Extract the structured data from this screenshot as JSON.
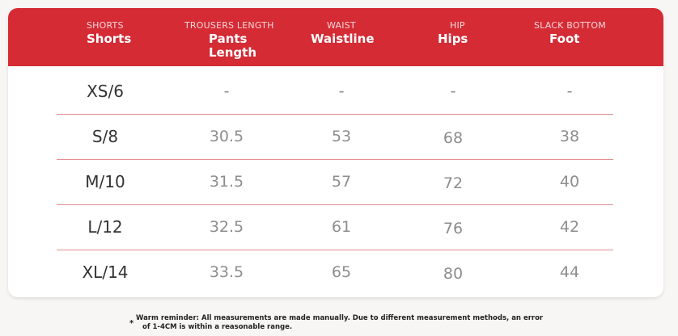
{
  "header": {
    "columns": [
      {
        "en": "SHORTS",
        "label": "Shorts"
      },
      {
        "en": "TROUSERS LENGTH",
        "label": "Pants\nLength"
      },
      {
        "en": "WAIST",
        "label": "Waistline"
      },
      {
        "en": "HIP",
        "label": "Hips"
      },
      {
        "en": "SLACK BOTTOM",
        "label": "Foot"
      }
    ]
  },
  "rows": [
    [
      "XS/6",
      "-",
      "-",
      "-",
      "-"
    ],
    [
      "S/8",
      "30.5",
      "53",
      "68",
      "38"
    ],
    [
      "M/10",
      "31.5",
      "57",
      "72",
      "40"
    ],
    [
      "L/12",
      "32.5",
      "61",
      "76",
      "42"
    ],
    [
      "XL/14",
      "33.5",
      "65",
      "80",
      "44"
    ]
  ],
  "note": {
    "star": "*",
    "line1": "Warm reminder: All measurements are made manually. Due to different measurement methods, an error",
    "line2": "of 1-4CM is within a reasonable range."
  },
  "colors": {
    "header_bg": "#d42b35",
    "separator": "#e58d93",
    "size_text": "#333333",
    "value_text": "#8d8d8d"
  }
}
